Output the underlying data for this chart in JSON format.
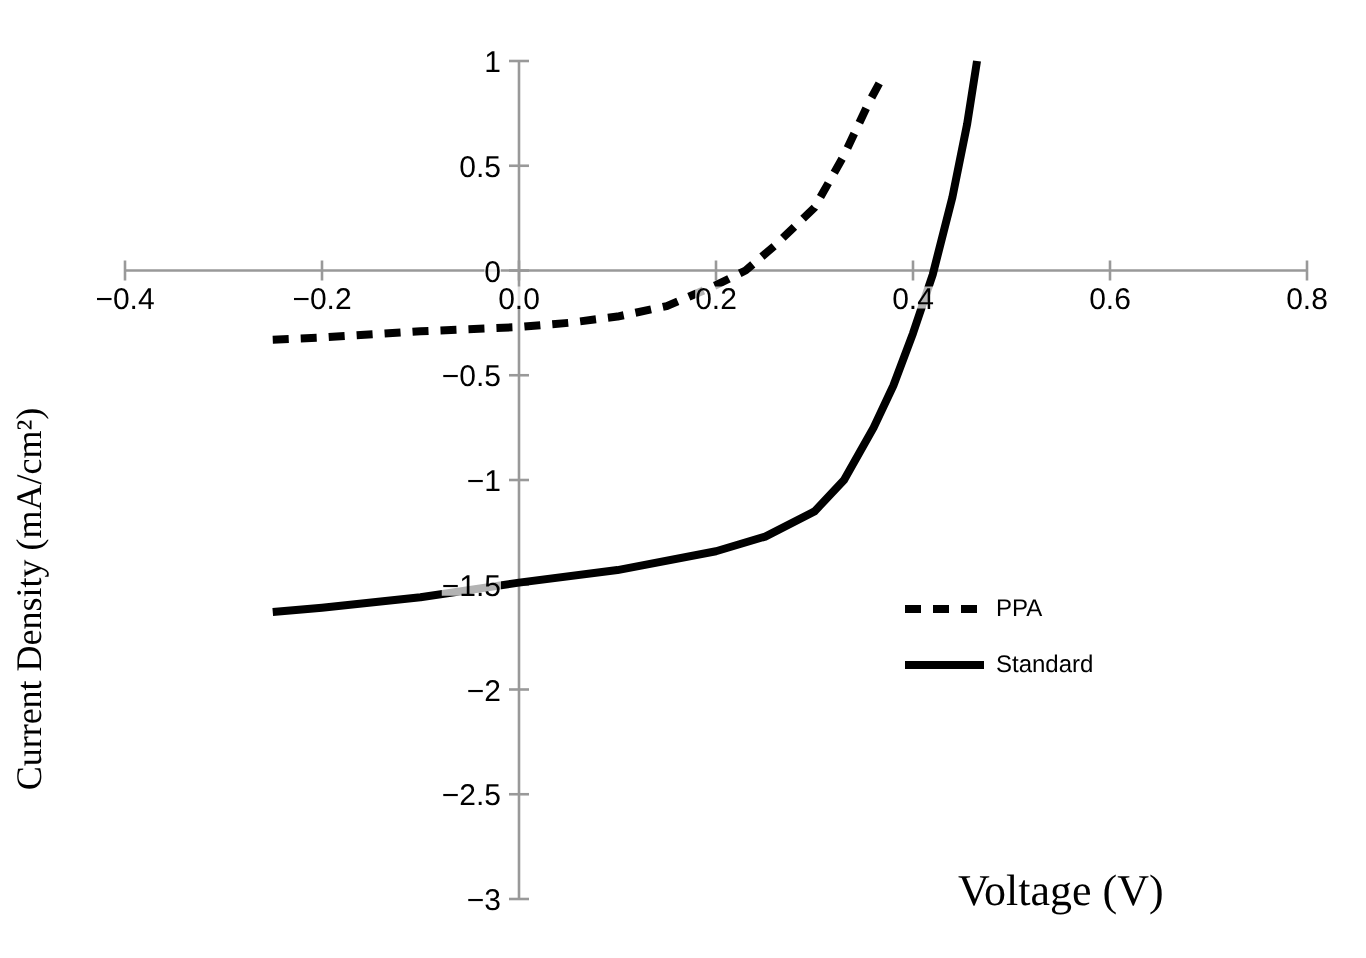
{
  "chart_data": {
    "type": "line",
    "xlabel": "Voltage (V)",
    "ylabel": "Current Density (mA/cm²)",
    "xlim": [
      -0.4,
      0.8
    ],
    "ylim": [
      -3,
      1
    ],
    "xticks": [
      -0.4,
      -0.2,
      {
        "value": 0,
        "label": "0.0"
      },
      0.2,
      0.4,
      0.6,
      0.8
    ],
    "yticks": [
      -3,
      -2.5,
      -2,
      -1.5,
      -1,
      -0.5,
      0,
      0.5,
      1
    ],
    "grid": false,
    "legend": "right",
    "marker": "none",
    "series": [
      {
        "name": "PPA",
        "color": "#000000",
        "line_style": "dashed",
        "x": [
          -0.25,
          -0.2,
          -0.1,
          0,
          0.05,
          0.1,
          0.15,
          0.2,
          0.23,
          0.26,
          0.3,
          0.33,
          0.355,
          0.37
        ],
        "values": [
          -0.33,
          -0.32,
          -0.29,
          -0.27,
          -0.25,
          -0.22,
          -0.17,
          -0.07,
          0,
          0.12,
          0.3,
          0.55,
          0.8,
          0.93
        ]
      },
      {
        "name": "Standard",
        "color": "#000000",
        "line_style": "solid",
        "x": [
          -0.25,
          -0.2,
          -0.1,
          0,
          0.1,
          0.2,
          0.25,
          0.3,
          0.33,
          0.36,
          0.38,
          0.4,
          0.42,
          0.44,
          0.455,
          0.465
        ],
        "values": [
          -1.63,
          -1.61,
          -1.56,
          -1.49,
          -1.43,
          -1.34,
          -1.27,
          -1.15,
          -1.0,
          -0.75,
          -0.55,
          -0.3,
          -0.02,
          0.35,
          0.7,
          1.0
        ]
      }
    ]
  }
}
